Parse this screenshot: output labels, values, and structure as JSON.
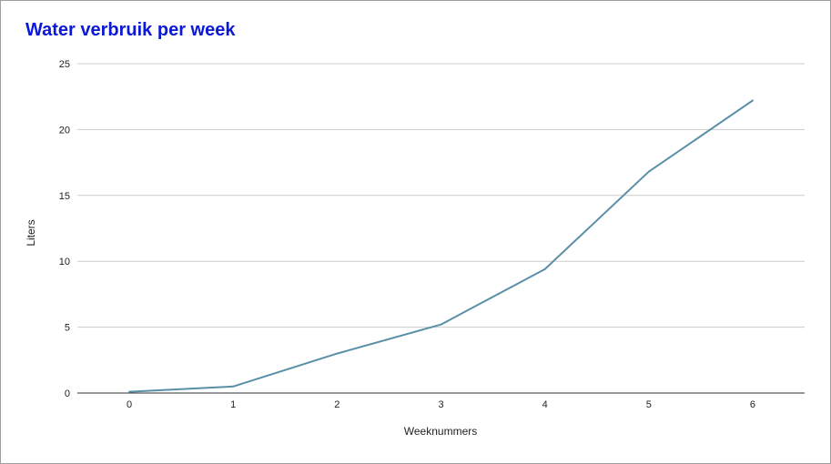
{
  "chart_data": {
    "type": "line",
    "title": "Water verbruik per week",
    "xlabel": "Weeknummers",
    "ylabel": "Liters",
    "x": [
      0,
      1,
      2,
      3,
      4,
      5,
      6
    ],
    "series": [
      {
        "values": [
          0.1,
          0.5,
          3.0,
          5.2,
          9.4,
          16.8,
          22.2
        ]
      }
    ],
    "xlim": [
      -0.5,
      6.5
    ],
    "ylim": [
      0,
      25
    ],
    "x_ticks": [
      "0",
      "1",
      "2",
      "3",
      "4",
      "5",
      "6"
    ],
    "y_ticks": [
      "0",
      "5",
      "10",
      "15",
      "20",
      "25"
    ],
    "grid": true,
    "legend": "none",
    "colors": {
      "title": "#0b18d6",
      "line": "#5a8fa8",
      "grid": "#cccccc",
      "axis": "#333333"
    }
  }
}
